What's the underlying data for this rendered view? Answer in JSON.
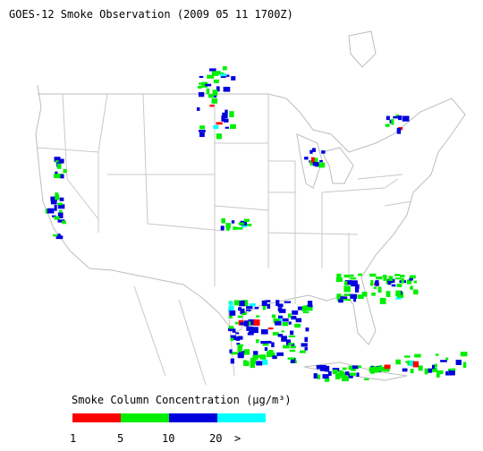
{
  "title": "GOES-12 Smoke Observation (2009 05 11  1700Z)",
  "legend": {
    "title": "Smoke Column Concentration (µg/m³)",
    "colors": [
      "#ff0000",
      "#00ee00",
      "#0000dd",
      "#00ffff"
    ],
    "labels": [
      "1",
      "5",
      "10",
      "20",
      ">"
    ]
  }
}
